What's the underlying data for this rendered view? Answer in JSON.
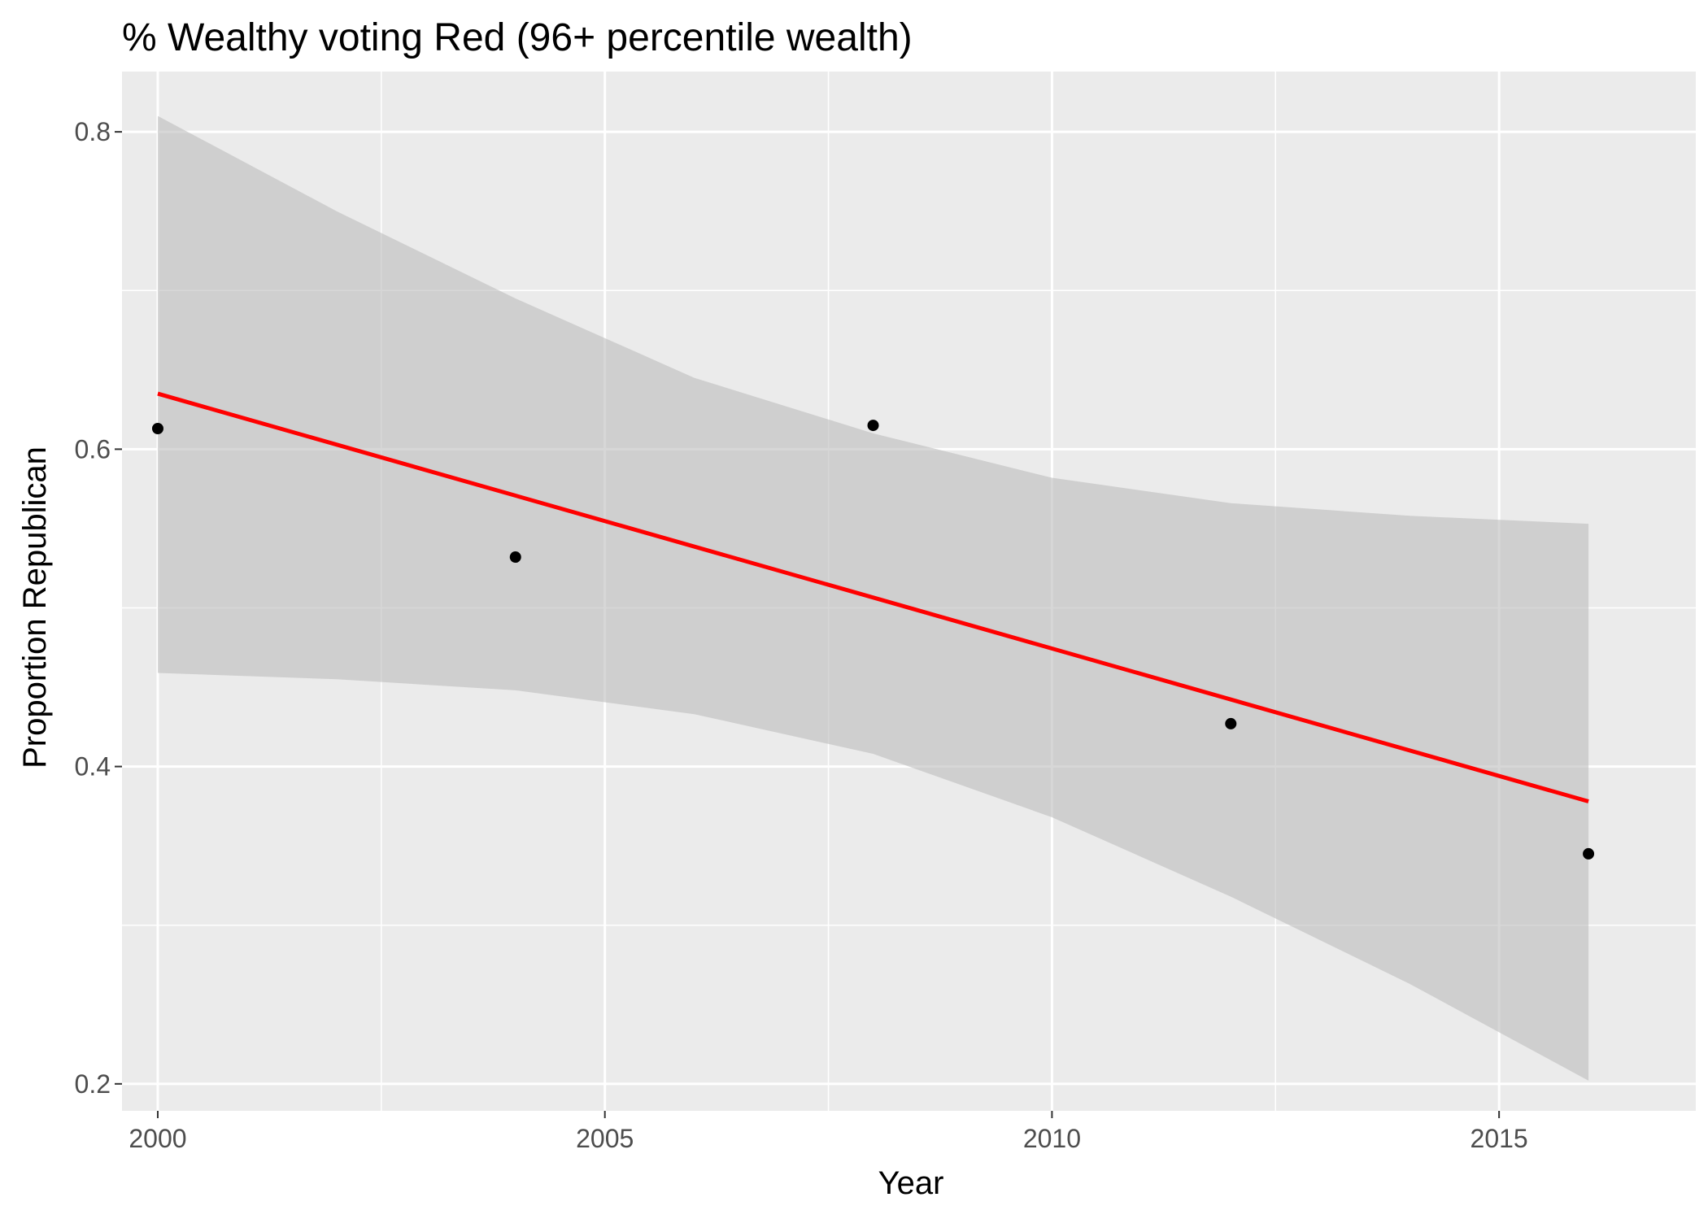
{
  "chart_data": {
    "type": "scatter",
    "title": "% Wealthy voting Red (96+ percentile wealth)",
    "xlabel": "Year",
    "ylabel": "Proportion Republican",
    "xlim": [
      1999.6,
      2017.2
    ],
    "ylim": [
      0.183,
      0.838
    ],
    "x_ticks": [
      2000,
      2005,
      2010,
      2015
    ],
    "x_tick_labels": [
      "2000",
      "2005",
      "2010",
      "2015"
    ],
    "y_ticks": [
      0.2,
      0.4,
      0.6,
      0.8
    ],
    "y_tick_labels": [
      "0.2",
      "0.4",
      "0.6",
      "0.8"
    ],
    "x_minor": [
      2002.5,
      2007.5,
      2012.5
    ],
    "y_minor": [
      0.3,
      0.5,
      0.7
    ],
    "grid": true,
    "series": [
      {
        "x": [
          2000,
          2004,
          2008,
          2012,
          2016
        ],
        "y": [
          0.613,
          0.532,
          0.615,
          0.427,
          0.345
        ]
      }
    ],
    "trend_line": {
      "color": "#ff0000",
      "x": [
        2000,
        2016
      ],
      "y": [
        0.635,
        0.378
      ]
    },
    "confidence_band": {
      "x": [
        2000,
        2002,
        2004,
        2006,
        2008,
        2010,
        2012,
        2014,
        2016
      ],
      "upper": [
        0.81,
        0.75,
        0.695,
        0.645,
        0.61,
        0.582,
        0.566,
        0.558,
        0.553
      ],
      "lower": [
        0.459,
        0.455,
        0.448,
        0.433,
        0.408,
        0.368,
        0.318,
        0.263,
        0.202
      ]
    },
    "colors": {
      "panel_background": "#ebebeb",
      "grid": "#ffffff",
      "band": "#bdbdbd",
      "points": "#000000"
    }
  }
}
